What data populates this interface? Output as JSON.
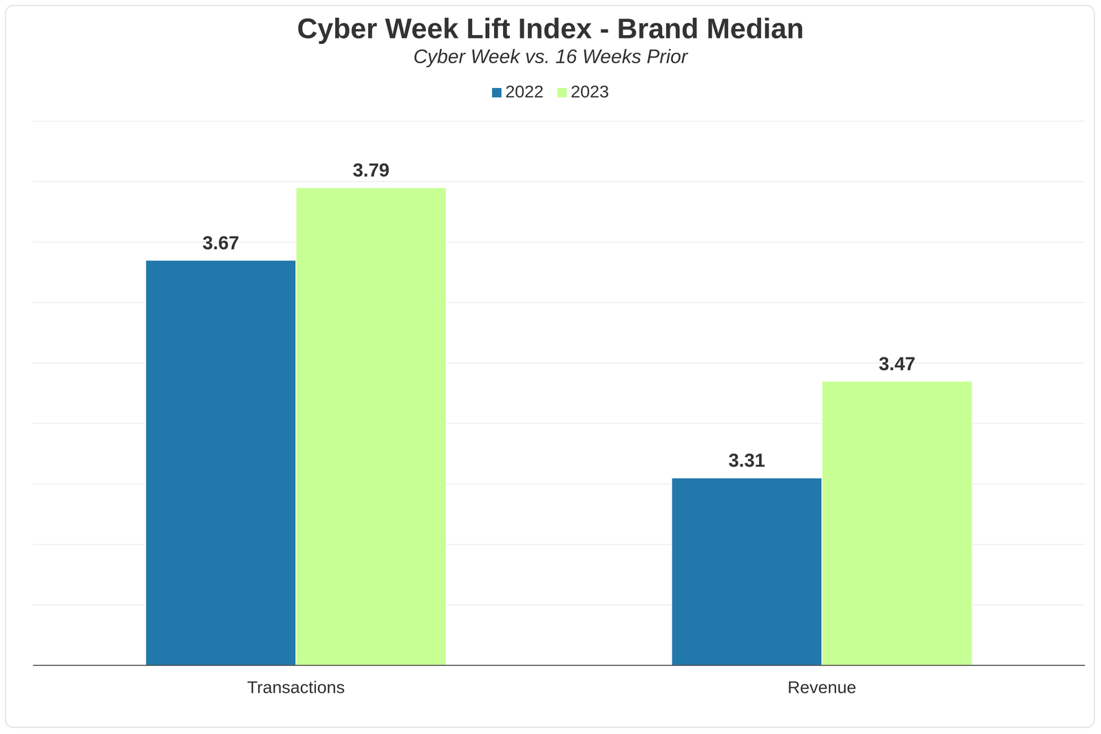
{
  "chart_data": {
    "type": "bar",
    "title": "Cyber Week Lift Index - Brand Median",
    "subtitle": "Cyber Week vs. 16 Weeks Prior",
    "categories": [
      "Transactions",
      "Revenue"
    ],
    "series": [
      {
        "name": "2022",
        "color": "#2278ab",
        "values": [
          3.67,
          3.31
        ]
      },
      {
        "name": "2023",
        "color": "#c8ff94",
        "values": [
          3.79,
          3.47
        ]
      }
    ],
    "ylim": [
      3,
      3.9
    ],
    "yticks": [
      3,
      3.1,
      3.2,
      3.3,
      3.4,
      3.5,
      3.6,
      3.7,
      3.8,
      3.9
    ],
    "grid": true,
    "legend": "top",
    "data_labels": true,
    "tick_labels": "x"
  }
}
